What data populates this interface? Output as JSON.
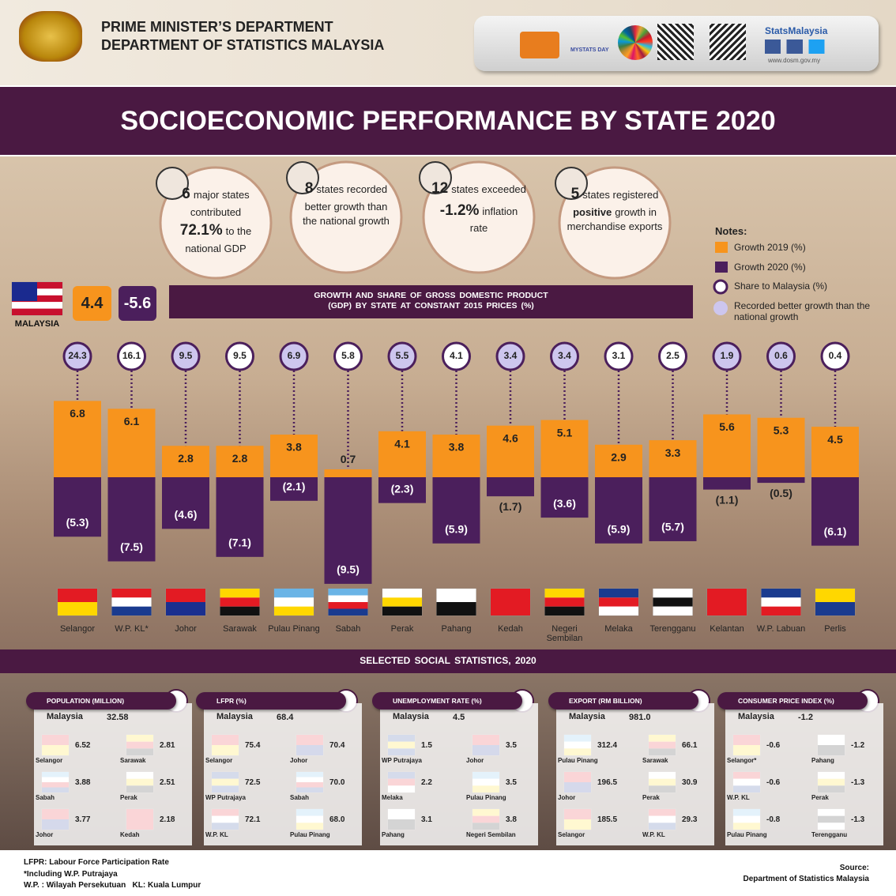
{
  "header": {
    "line1": "PRIME MINISTER’S DEPARTMENT",
    "line2": "DEPARTMENT OF STATISTICS MALAYSIA",
    "brand": "StatsMalaysia",
    "url": "www.dosm.gov.my",
    "badge": "MYSTATS DAY"
  },
  "title": "SOCIOECONOMIC PERFORMANCE BY STATE 2020",
  "highlights": [
    {
      "lead": "6",
      "text": "major states contributed",
      "strong": "72.1%",
      "rest": "to the national GDP"
    },
    {
      "lead": "8",
      "text": "states recorded better growth than the national growth"
    },
    {
      "lead": "12",
      "text": "states exceeded",
      "strong": "-1.2%",
      "rest": "inflation rate"
    },
    {
      "lead": "5",
      "text": "states registered",
      "strong": "positive",
      "rest": "growth in merchandise exports"
    }
  ],
  "notes_title": "Notes:",
  "malaysia": {
    "label": "MALAYSIA",
    "growth_2019": 4.4,
    "growth_2020": -5.6
  },
  "chart_data": {
    "type": "bar",
    "title": "GROWTH AND SHARE OF GROSS DOMESTIC PRODUCT (GDP) BY STATE AT CONSTANT 2015 PRICES (%)",
    "categories": [
      "Selangor",
      "W.P. KL*",
      "Johor",
      "Sarawak",
      "Pulau Pinang",
      "Sabah",
      "Perak",
      "Pahang",
      "Kedah",
      "Negeri Sembilan",
      "Melaka",
      "Terengganu",
      "Kelantan",
      "W.P. Labuan",
      "Perlis"
    ],
    "series": [
      {
        "name": "Growth 2019 (%)",
        "color": "#f7941d",
        "values": [
          6.8,
          6.1,
          2.8,
          2.8,
          3.8,
          0.7,
          4.1,
          3.8,
          4.6,
          5.1,
          2.9,
          3.3,
          5.6,
          5.3,
          4.5
        ]
      },
      {
        "name": "Growth 2020 (%)",
        "color": "#4b1f5c",
        "values": [
          -5.3,
          -7.5,
          -4.6,
          -7.1,
          -2.1,
          -9.5,
          -2.3,
          -5.9,
          -1.7,
          -3.6,
          -5.9,
          -5.7,
          -1.1,
          -0.5,
          -6.1
        ],
        "value_labels": [
          "(5.3)",
          "(7.5)",
          "(4.6)",
          "(7.1)",
          "(2.1)",
          "(9.5)",
          "(2.3)",
          "(5.9)",
          "(1.7)",
          "(3.6)",
          "(5.9)",
          "(5.7)",
          "(1.1)",
          "(0.5)",
          "(6.1)"
        ]
      },
      {
        "name": "Share to Malaysia (%)",
        "color": "#ffffff",
        "values": [
          24.3,
          16.1,
          9.5,
          9.5,
          6.9,
          5.8,
          5.5,
          4.1,
          3.4,
          3.4,
          3.1,
          2.5,
          1.9,
          0.6,
          0.4
        ]
      }
    ],
    "highlight_label": "Recorded better growth than the national growth",
    "highlight_color": "#cdc6ee",
    "highlight": [
      true,
      false,
      true,
      false,
      true,
      false,
      true,
      false,
      true,
      true,
      false,
      false,
      true,
      true,
      false
    ],
    "flag_colors": [
      [
        "#e31b23",
        "#ffd700"
      ],
      [
        "#e31b23",
        "#ffffff",
        "#1a3b8f"
      ],
      [
        "#e31b23",
        "#1a2f8f"
      ],
      [
        "#ffd700",
        "#e31b23",
        "#111111"
      ],
      [
        "#6ab4e6",
        "#ffffff",
        "#ffd700"
      ],
      [
        "#6ab4e6",
        "#ffffff",
        "#e31b23",
        "#1a3b8f"
      ],
      [
        "#ffffff",
        "#ffd700",
        "#111111"
      ],
      [
        "#ffffff",
        "#111111"
      ],
      [
        "#e31b23"
      ],
      [
        "#ffd700",
        "#e31b23",
        "#111111"
      ],
      [
        "#1a3b8f",
        "#e31b23",
        "#ffffff"
      ],
      [
        "#ffffff",
        "#111111",
        "#ffffff"
      ],
      [
        "#e31b23"
      ],
      [
        "#1a3b8f",
        "#ffffff",
        "#e31b23"
      ],
      [
        "#ffd700",
        "#1a3b8f"
      ]
    ]
  },
  "social": {
    "title": "SELECTED SOCIAL STATISTICS, 2020",
    "panels": [
      {
        "title": "POPULATION (MILLION)",
        "malaysia_label": "Malaysia",
        "malaysia_value": "32.58",
        "items": [
          {
            "name": "Selangor",
            "value": "6.52",
            "flag": [
              "#e31b23",
              "#ffd700"
            ]
          },
          {
            "name": "Sarawak",
            "value": "2.81",
            "flag": [
              "#ffd700",
              "#e31b23",
              "#111111"
            ]
          },
          {
            "name": "Sabah",
            "value": "3.88",
            "flag": [
              "#6ab4e6",
              "#ffffff",
              "#e31b23",
              "#1a3b8f"
            ]
          },
          {
            "name": "Perak",
            "value": "2.51",
            "flag": [
              "#ffffff",
              "#ffd700",
              "#111111"
            ]
          },
          {
            "name": "Johor",
            "value": "3.77",
            "flag": [
              "#e31b23",
              "#1a2f8f"
            ]
          },
          {
            "name": "Kedah",
            "value": "2.18",
            "flag": [
              "#e31b23"
            ]
          }
        ]
      },
      {
        "title": "LFPR (%)",
        "malaysia_label": "Malaysia",
        "malaysia_value": "68.4",
        "items": [
          {
            "name": "Selangor",
            "value": "75.4",
            "flag": [
              "#e31b23",
              "#ffd700"
            ]
          },
          {
            "name": "Johor",
            "value": "70.4",
            "flag": [
              "#e31b23",
              "#1a2f8f"
            ]
          },
          {
            "name": "WP Putrajaya",
            "value": "72.5",
            "flag": [
              "#1a3b8f",
              "#ffd700",
              "#1a3b8f"
            ]
          },
          {
            "name": "Sabah",
            "value": "70.0",
            "flag": [
              "#6ab4e6",
              "#ffffff",
              "#e31b23",
              "#1a3b8f"
            ]
          },
          {
            "name": "W.P. KL",
            "value": "72.1",
            "flag": [
              "#e31b23",
              "#ffffff",
              "#1a3b8f"
            ]
          },
          {
            "name": "Pulau Pinang",
            "value": "68.0",
            "flag": [
              "#6ab4e6",
              "#ffffff",
              "#ffd700"
            ]
          }
        ]
      },
      {
        "title": "UNEMPLOYMENT RATE (%)",
        "malaysia_label": "Malaysia",
        "malaysia_value": "4.5",
        "items": [
          {
            "name": "WP Putrajaya",
            "value": "1.5",
            "flag": [
              "#1a3b8f",
              "#ffd700",
              "#1a3b8f"
            ]
          },
          {
            "name": "Johor",
            "value": "3.5",
            "flag": [
              "#e31b23",
              "#1a2f8f"
            ]
          },
          {
            "name": "Melaka",
            "value": "2.2",
            "flag": [
              "#1a3b8f",
              "#e31b23",
              "#ffffff"
            ]
          },
          {
            "name": "Pulau Pinang",
            "value": "3.5",
            "flag": [
              "#6ab4e6",
              "#ffffff",
              "#ffd700"
            ]
          },
          {
            "name": "Pahang",
            "value": "3.1",
            "flag": [
              "#ffffff",
              "#111111"
            ]
          },
          {
            "name": "Negeri Sembilan",
            "value": "3.8",
            "flag": [
              "#ffd700",
              "#e31b23",
              "#111111"
            ]
          }
        ]
      },
      {
        "title": "EXPORT (RM BILLION)",
        "malaysia_label": "Malaysia",
        "malaysia_value": "981.0",
        "items": [
          {
            "name": "Pulau Pinang",
            "value": "312.4",
            "flag": [
              "#6ab4e6",
              "#ffffff",
              "#ffd700"
            ]
          },
          {
            "name": "Sarawak",
            "value": "66.1",
            "flag": [
              "#ffd700",
              "#e31b23",
              "#111111"
            ]
          },
          {
            "name": "Johor",
            "value": "196.5",
            "flag": [
              "#e31b23",
              "#1a2f8f"
            ]
          },
          {
            "name": "Perak",
            "value": "30.9",
            "flag": [
              "#ffffff",
              "#ffd700",
              "#111111"
            ]
          },
          {
            "name": "Selangor",
            "value": "185.5",
            "flag": [
              "#e31b23",
              "#ffd700"
            ]
          },
          {
            "name": "W.P. KL",
            "value": "29.3",
            "flag": [
              "#e31b23",
              "#ffffff",
              "#1a3b8f"
            ]
          }
        ]
      },
      {
        "title": "CONSUMER PRICE INDEX (%)",
        "malaysia_label": "Malaysia",
        "malaysia_value": "-1.2",
        "items": [
          {
            "name": "Selangor*",
            "value": "-0.6",
            "flag": [
              "#e31b23",
              "#ffd700"
            ]
          },
          {
            "name": "Pahang",
            "value": "-1.2",
            "flag": [
              "#ffffff",
              "#111111"
            ]
          },
          {
            "name": "W.P. KL",
            "value": "-0.6",
            "flag": [
              "#e31b23",
              "#ffffff",
              "#1a3b8f"
            ]
          },
          {
            "name": "Perak",
            "value": "-1.3",
            "flag": [
              "#ffffff",
              "#ffd700",
              "#111111"
            ]
          },
          {
            "name": "Pulau Pinang",
            "value": "-0.8",
            "flag": [
              "#6ab4e6",
              "#ffffff",
              "#ffd700"
            ]
          },
          {
            "name": "Terengganu",
            "value": "-1.3",
            "flag": [
              "#ffffff",
              "#111111",
              "#ffffff"
            ]
          }
        ]
      }
    ]
  },
  "footer": {
    "note1": "LFPR: Labour Force Participation Rate",
    "note2": "*Including W.P. Putrajaya",
    "note3": "W.P. : Wilayah Persekutuan   KL: Kuala Lumpur",
    "source_label": "Source:",
    "source": "Department of Statistics Malaysia"
  }
}
